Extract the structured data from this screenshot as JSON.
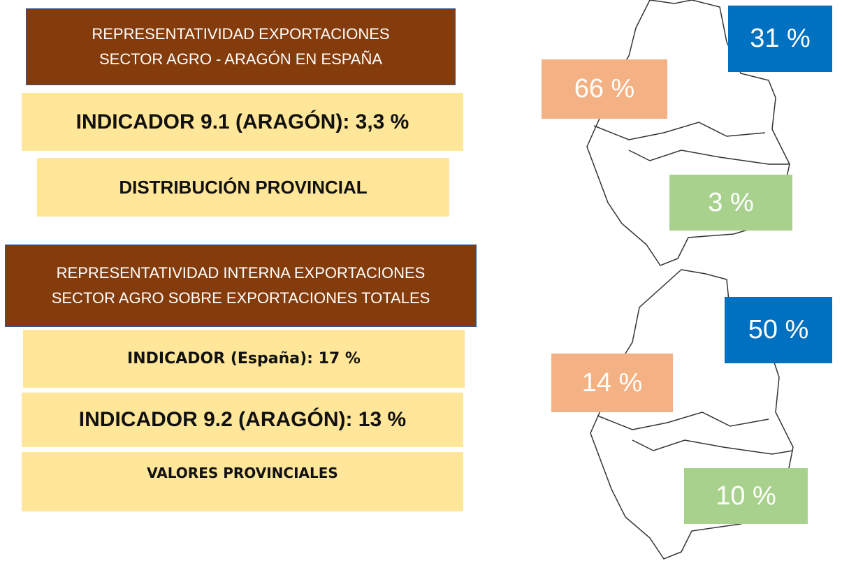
{
  "blocks": [
    {
      "lines": [
        "REPRESENTATIVIDAD EXPORTACIONES",
        "SECTOR AGRO - ARAGÓN EN ESPAÑA"
      ]
    },
    {
      "lines": [
        "INDICADOR 9.1 (ARAGÓN): 3,3 %"
      ]
    },
    {
      "lines": [
        "DISTRIBUCIÓN PROVINCIAL"
      ]
    },
    {
      "lines": [
        "REPRESENTATIVIDAD INTERNA EXPORTACIONES",
        "SECTOR AGRO SOBRE EXPORTACIONES TOTALES"
      ]
    },
    {
      "lines": [
        "INDICADOR (España): 17 %"
      ]
    },
    {
      "lines": [
        "INDICADOR 9.2 (ARAGÓN): 13 %"
      ]
    },
    {
      "lines": [
        "VALORES PROVINCIALES"
      ]
    }
  ],
  "maps": [
    {
      "huesca": "31 %",
      "zaragoza": "66 %",
      "teruel": "3 %"
    },
    {
      "huesca": "50 %",
      "zaragoza": "14 %",
      "teruel": "10 %"
    }
  ]
}
